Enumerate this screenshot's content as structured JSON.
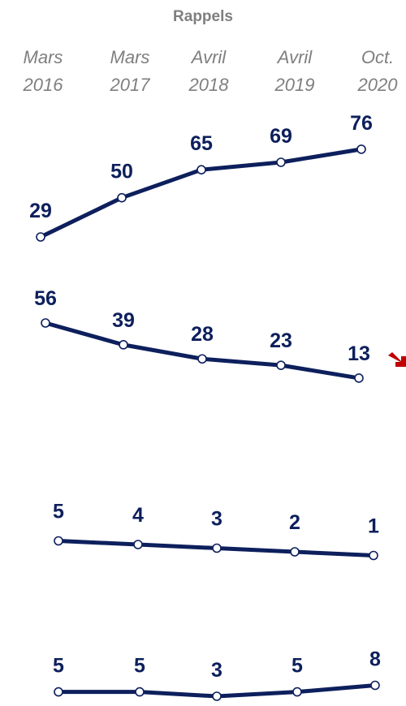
{
  "chart_data": {
    "type": "line",
    "title": "Rappels",
    "categories": [
      [
        "Mars",
        "2016"
      ],
      [
        "Mars",
        "2017"
      ],
      [
        "Avril",
        "2018"
      ],
      [
        "Avril",
        "2019"
      ],
      [
        "Oct.",
        "2020"
      ]
    ],
    "series": [
      {
        "values": [
          29,
          50,
          65,
          69,
          76
        ]
      },
      {
        "values": [
          56,
          39,
          28,
          23,
          13
        ],
        "trend": "down"
      },
      {
        "values": [
          5,
          4,
          3,
          2,
          1
        ]
      },
      {
        "values": [
          5,
          5,
          3,
          5,
          8
        ]
      }
    ],
    "colors": {
      "line": "#0d1f5c",
      "label": "#0d1f5c",
      "header": "#7f7f7f",
      "trend_arrow": "#c00000"
    },
    "grid": false,
    "legend": "none"
  }
}
